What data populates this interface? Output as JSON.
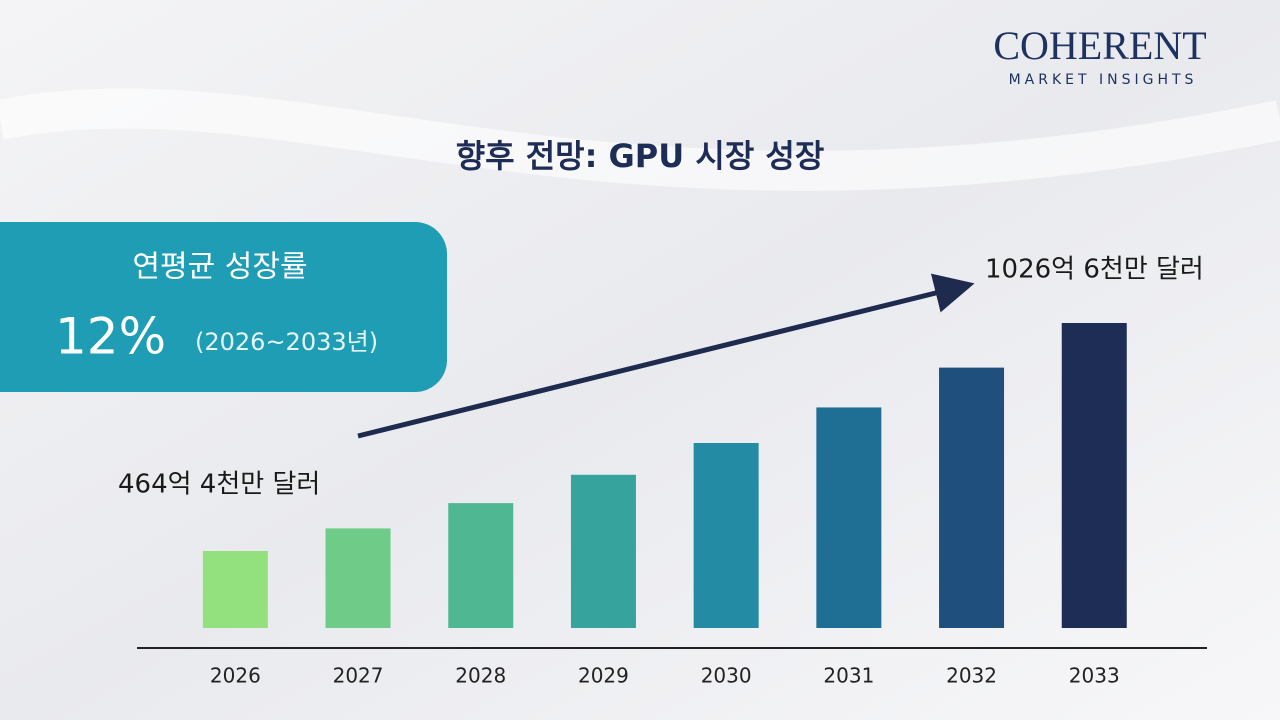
{
  "logo": {
    "name": "COHERENT",
    "tagline": "MARKET INSIGHTS"
  },
  "chart_data": {
    "type": "bar",
    "title": "향후 전망: GPU 시장 성장",
    "cagr": {
      "label": "연평균 성장률",
      "value": "12%",
      "period": "(2026~2033년)"
    },
    "categories": [
      "2026",
      "2027",
      "2028",
      "2029",
      "2030",
      "2031",
      "2032",
      "2033"
    ],
    "values": [
      464.4,
      520.1,
      582.5,
      652.4,
      730.7,
      818.4,
      916.6,
      1026.6
    ],
    "value_labels": [
      "464억 4천만 달러",
      null,
      null,
      null,
      null,
      null,
      null,
      "1026억 6천만 달러"
    ],
    "colors": [
      "#93e07f",
      "#6fcb88",
      "#4fb893",
      "#36a39c",
      "#238ba3",
      "#1f6f95",
      "#1f4f7d",
      "#1e2d55"
    ]
  }
}
